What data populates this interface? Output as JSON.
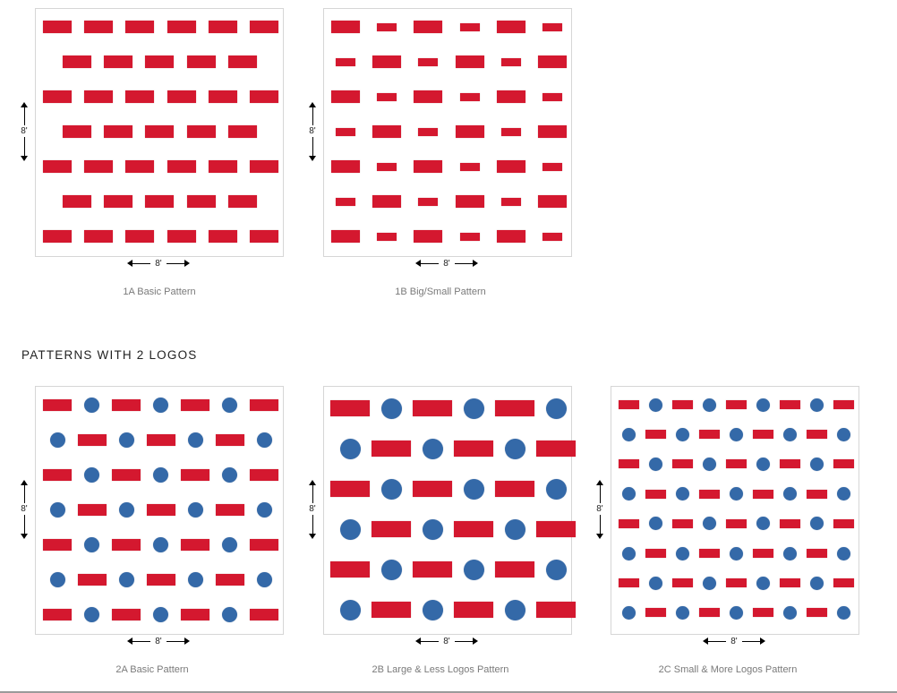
{
  "colors": {
    "logo_red": "#d4182f",
    "logo_blue": "#3469a8",
    "card_border": "#d6d6d6",
    "caption": "#7a7a7a"
  },
  "section": {
    "title": "PATTERNS WITH 2 LOGOS"
  },
  "patterns": [
    {
      "id": "1A",
      "caption": "1A Basic Pattern",
      "dim_vertical": "8'",
      "dim_horizontal": "8'",
      "rows": [
        "LLLLLL",
        "LLLLL",
        "LLLLLL",
        "LLLLL",
        "LLLLLL",
        "LLLLL",
        "LLLLLL"
      ]
    },
    {
      "id": "1B",
      "caption": "1B Big/Small Pattern",
      "dim_vertical": "8'",
      "dim_horizontal": "8'",
      "rows": [
        "LsLsLs",
        "sLsLsL",
        "LsLsLs",
        "sLsLsL",
        "LsLsLs",
        "sLsLsL",
        "LsLsLs"
      ]
    },
    {
      "id": "2A",
      "caption": "2A Basic Pattern",
      "dim_vertical": "8'",
      "dim_horizontal": "8'",
      "rows": [
        "LoLoLoL",
        "oLoLoLo",
        "LoLoLoL",
        "oLoLoLo",
        "LoLoLoL",
        "oLoLoLo",
        "LoLoLoL"
      ]
    },
    {
      "id": "2B",
      "caption": "2B Large & Less Logos Pattern",
      "dim_vertical": "8'",
      "dim_horizontal": "8'",
      "rows": [
        "LoLoLo",
        "oLoLoL",
        "LoLoLo",
        "oLoLoL",
        "LoLoLo",
        "oLoLoL"
      ]
    },
    {
      "id": "2C",
      "caption": "2C Small & More Logos Pattern",
      "dim_vertical": "8'",
      "dim_horizontal": "8'",
      "rows": [
        "LoLoLoLoL",
        "oLoLoLoLo",
        "LoLoLoLoL",
        "oLoLoLoLo",
        "LoLoLoLoL",
        "oLoLoLoLo",
        "LoLoLoLoL",
        "oLoLoLoLo"
      ]
    }
  ]
}
